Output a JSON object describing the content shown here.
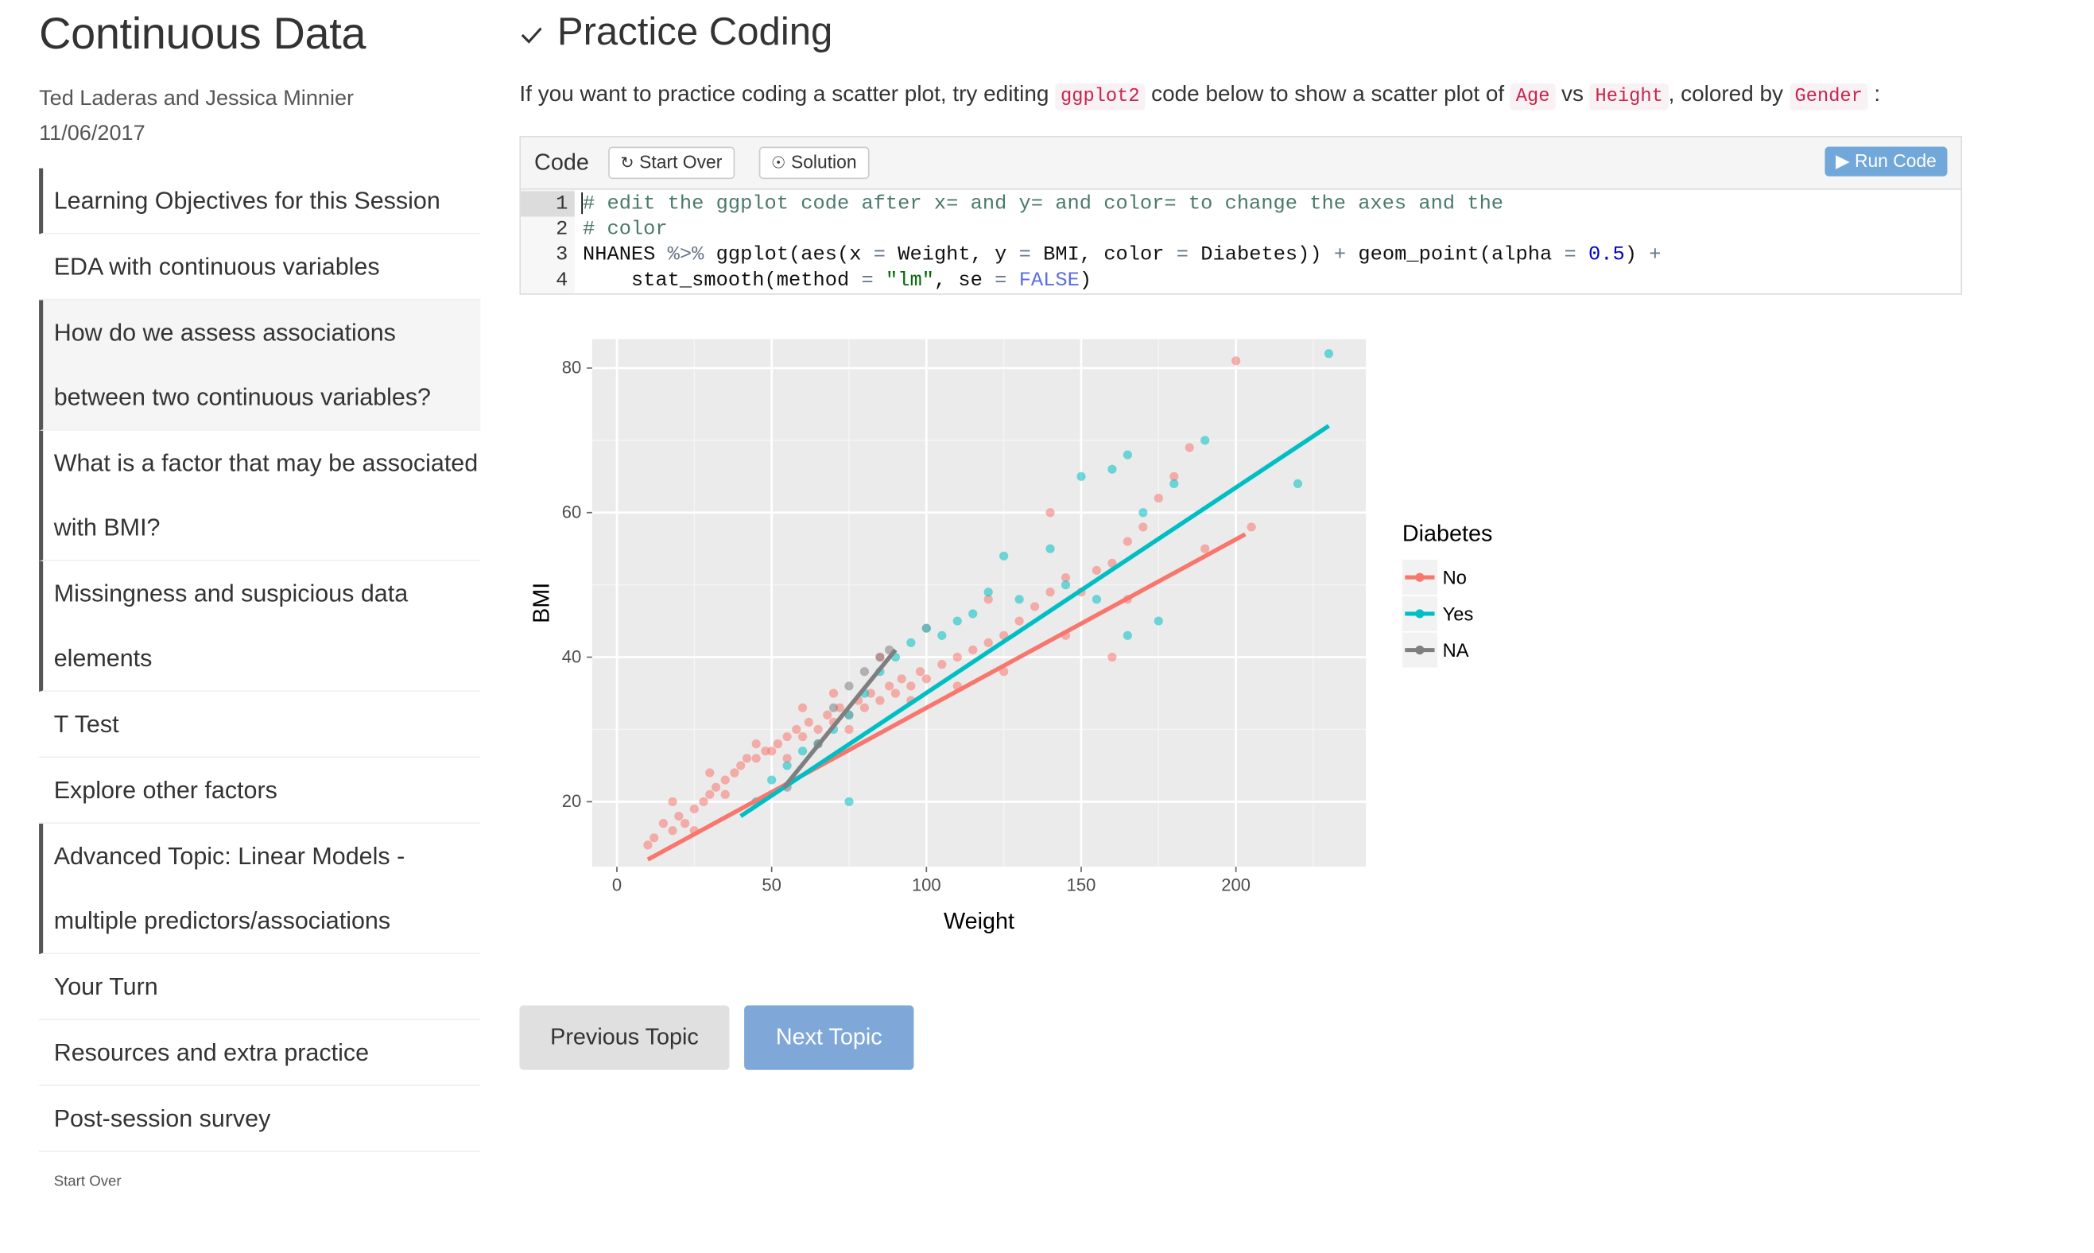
{
  "doc": {
    "title": "Continuous Data",
    "authors": "Ted Laderas and Jessica Minnier",
    "date": "11/06/2017"
  },
  "toc": {
    "items": [
      {
        "label": "Learning Objectives for this Session"
      },
      {
        "label": "EDA with continuous variables"
      },
      {
        "label": "How do we assess associations between two continuous variables?"
      },
      {
        "label": "What is a factor that may be associated with BMI?"
      },
      {
        "label": "Missingness and suspicious data elements"
      },
      {
        "label": "T Test"
      },
      {
        "label": "Explore other factors"
      },
      {
        "label": "Advanced Topic: Linear Models - multiple predictors/associations"
      },
      {
        "label": "Your Turn"
      },
      {
        "label": "Resources and extra practice"
      },
      {
        "label": "Post-session survey"
      }
    ],
    "start_over": "Start Over"
  },
  "topic": {
    "check_icon": "check-icon",
    "title": "Practice Coding",
    "instr_part1": "If you want to practice coding a scatter plot, try editing",
    "instr_code1": "ggplot2",
    "instr_part2": "code below to show a scatter plot of",
    "instr_code2": "Age",
    "instr_part3": "vs",
    "instr_code3": "Height",
    "instr_part4": ", colored by",
    "instr_code4": "Gender",
    "instr_part5": ":"
  },
  "exercise": {
    "label": "Code",
    "start_over": "Start Over",
    "solution": "Solution",
    "run_code": "Run Code",
    "line_numbers": [
      "1",
      "2",
      "3",
      "4"
    ],
    "code": {
      "l1": "# edit the ggplot code after x= and y= and color= to change the axes and the",
      "l2": "# color",
      "l3a": "NHANES ",
      "l3b": "%>%",
      "l3c": " ggplot(aes(x ",
      "l3d": "=",
      "l3e": " Weight, y ",
      "l3f": "=",
      "l3g": " BMI, color ",
      "l3h": "=",
      "l3i": " Diabetes)) ",
      "l3j": "+",
      "l3k": " geom_point(alpha ",
      "l3l": "=",
      "l3m": "0.5",
      "l3n": ") ",
      "l3o": "+",
      "l4a": "    stat_smooth(method ",
      "l4b": "=",
      "l4c": "\"lm\"",
      "l4d": ", se ",
      "l4e": "=",
      "l4f": "FALSE",
      "l4g": ")"
    }
  },
  "chart_data": {
    "type": "scatter",
    "title": "",
    "xlabel": "Weight",
    "ylabel": "BMI",
    "xlim": [
      -8,
      242
    ],
    "ylim": [
      11,
      84
    ],
    "xticks": [
      0,
      50,
      100,
      150,
      200
    ],
    "yticks": [
      20,
      40,
      60,
      80
    ],
    "grid": true,
    "legend": {
      "title": "Diabetes",
      "position": "right"
    },
    "series": [
      {
        "name": "No",
        "color": "#F8766D",
        "points": [
          [
            12,
            15
          ],
          [
            15,
            17
          ],
          [
            18,
            16
          ],
          [
            20,
            18
          ],
          [
            22,
            17
          ],
          [
            25,
            19
          ],
          [
            28,
            20
          ],
          [
            30,
            21
          ],
          [
            32,
            22
          ],
          [
            35,
            23
          ],
          [
            38,
            24
          ],
          [
            40,
            25
          ],
          [
            42,
            26
          ],
          [
            45,
            26
          ],
          [
            48,
            27
          ],
          [
            50,
            27
          ],
          [
            52,
            28
          ],
          [
            55,
            29
          ],
          [
            58,
            30
          ],
          [
            60,
            29
          ],
          [
            62,
            31
          ],
          [
            65,
            30
          ],
          [
            68,
            32
          ],
          [
            70,
            31
          ],
          [
            72,
            33
          ],
          [
            75,
            32
          ],
          [
            78,
            34
          ],
          [
            80,
            33
          ],
          [
            82,
            35
          ],
          [
            85,
            34
          ],
          [
            88,
            36
          ],
          [
            90,
            35
          ],
          [
            92,
            37
          ],
          [
            95,
            36
          ],
          [
            98,
            38
          ],
          [
            100,
            37
          ],
          [
            105,
            39
          ],
          [
            110,
            40
          ],
          [
            115,
            41
          ],
          [
            120,
            42
          ],
          [
            125,
            43
          ],
          [
            130,
            45
          ],
          [
            135,
            47
          ],
          [
            140,
            49
          ],
          [
            145,
            51
          ],
          [
            150,
            49
          ],
          [
            155,
            52
          ],
          [
            160,
            53
          ],
          [
            165,
            56
          ],
          [
            170,
            58
          ],
          [
            175,
            62
          ],
          [
            180,
            65
          ],
          [
            185,
            69
          ],
          [
            200,
            81
          ],
          [
            205,
            58
          ],
          [
            160,
            40
          ],
          [
            140,
            60
          ],
          [
            120,
            48
          ],
          [
            100,
            44
          ],
          [
            85,
            40
          ],
          [
            70,
            35
          ],
          [
            60,
            33
          ],
          [
            45,
            28
          ],
          [
            30,
            24
          ],
          [
            18,
            20
          ],
          [
            10,
            14
          ],
          [
            25,
            16
          ],
          [
            35,
            21
          ],
          [
            55,
            26
          ],
          [
            75,
            30
          ],
          [
            95,
            34
          ],
          [
            110,
            36
          ],
          [
            125,
            38
          ],
          [
            145,
            43
          ],
          [
            165,
            48
          ],
          [
            190,
            55
          ]
        ],
        "fit": [
          [
            10,
            12
          ],
          [
            203,
            57
          ]
        ]
      },
      {
        "name": "Yes",
        "color": "#00BFC4",
        "points": [
          [
            230,
            82
          ],
          [
            220,
            64
          ],
          [
            190,
            70
          ],
          [
            180,
            64
          ],
          [
            170,
            60
          ],
          [
            165,
            68
          ],
          [
            160,
            66
          ],
          [
            150,
            65
          ],
          [
            140,
            55
          ],
          [
            125,
            54
          ],
          [
            120,
            49
          ],
          [
            115,
            46
          ],
          [
            110,
            45
          ],
          [
            105,
            43
          ],
          [
            100,
            44
          ],
          [
            95,
            42
          ],
          [
            90,
            40
          ],
          [
            85,
            38
          ],
          [
            80,
            35
          ],
          [
            75,
            32
          ],
          [
            70,
            30
          ],
          [
            65,
            28
          ],
          [
            60,
            27
          ],
          [
            55,
            25
          ],
          [
            50,
            23
          ],
          [
            45,
            20
          ],
          [
            75,
            20
          ],
          [
            130,
            48
          ],
          [
            145,
            50
          ],
          [
            175,
            45
          ],
          [
            165,
            43
          ],
          [
            155,
            48
          ]
        ],
        "fit": [
          [
            40,
            18
          ],
          [
            230,
            72
          ]
        ]
      },
      {
        "name": "NA",
        "color": "#7F7F7F",
        "points": [
          [
            55,
            22
          ],
          [
            65,
            28
          ],
          [
            70,
            33
          ],
          [
            75,
            36
          ],
          [
            80,
            38
          ],
          [
            85,
            40
          ],
          [
            88,
            41
          ]
        ],
        "fit": [
          [
            54,
            22
          ],
          [
            90,
            41
          ]
        ]
      }
    ]
  },
  "nav": {
    "previous": "Previous Topic",
    "next": "Next Topic"
  }
}
